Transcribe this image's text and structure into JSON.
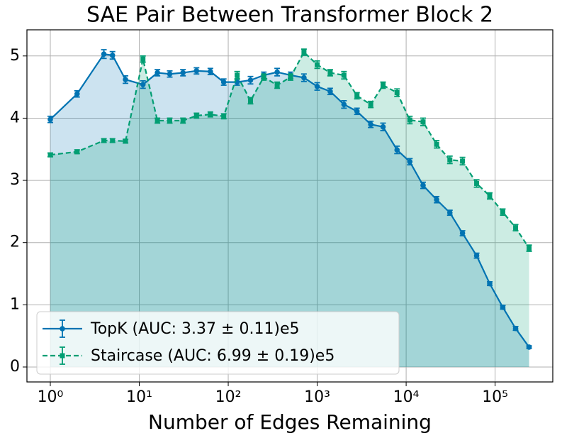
{
  "chart_data": {
    "type": "line",
    "title": "SAE Pair Between Transformer Block 2",
    "x_label": "Number of Edges Remaining",
    "log_x": true,
    "grid": true,
    "legend_loc": "lower left",
    "x": [
      1,
      2,
      4,
      5,
      7,
      11,
      16,
      22,
      31,
      44,
      63,
      89,
      126,
      178,
      251,
      355,
      502,
      710,
      1000,
      1400,
      2000,
      2800,
      4000,
      5500,
      7900,
      11000,
      15500,
      22000,
      31000,
      43000,
      62000,
      87000,
      122000,
      170000,
      241000
    ],
    "xlim": [
      0.546,
      445000
    ],
    "ylim": [
      -0.24,
      5.42
    ],
    "xticks": [
      {
        "value": 1,
        "label": "10⁰"
      },
      {
        "value": 10,
        "label": "10¹"
      },
      {
        "value": 100,
        "label": "10²"
      },
      {
        "value": 1000,
        "label": "10³"
      },
      {
        "value": 10000,
        "label": "10⁴"
      },
      {
        "value": 100000,
        "label": "10⁵"
      }
    ],
    "yticks": [
      0,
      1,
      2,
      3,
      4,
      5
    ],
    "series": [
      {
        "name": "TopK (AUC: 3.37 ± 0.11)e5",
        "color": "#0173b2",
        "marker": "circle",
        "dash": false,
        "values": [
          3.98,
          4.39,
          5.03,
          5.01,
          4.62,
          4.54,
          4.73,
          4.71,
          4.73,
          4.76,
          4.75,
          4.58,
          4.58,
          4.61,
          4.69,
          4.74,
          4.69,
          4.65,
          4.51,
          4.43,
          4.22,
          4.11,
          3.9,
          3.86,
          3.49,
          3.3,
          2.92,
          2.69,
          2.48,
          2.15,
          1.79,
          1.34,
          0.96,
          0.62,
          0.32
        ],
        "errors": [
          0.05,
          0.05,
          0.07,
          0.06,
          0.06,
          0.06,
          0.05,
          0.05,
          0.05,
          0.05,
          0.05,
          0.05,
          0.05,
          0.06,
          0.05,
          0.06,
          0.05,
          0.06,
          0.06,
          0.05,
          0.06,
          0.05,
          0.05,
          0.06,
          0.06,
          0.05,
          0.05,
          0.05,
          0.04,
          0.04,
          0.04,
          0.03,
          0.03,
          0.03,
          0.02
        ]
      },
      {
        "name": "Staircase (AUC: 6.99 ± 0.19)e5",
        "color": "#029e73",
        "marker": "square",
        "dash": true,
        "values": [
          3.41,
          3.46,
          3.64,
          3.64,
          3.63,
          4.95,
          3.96,
          3.96,
          3.96,
          4.04,
          4.06,
          4.03,
          4.69,
          4.28,
          4.66,
          4.53,
          4.66,
          5.06,
          4.86,
          4.73,
          4.69,
          4.36,
          4.22,
          4.53,
          4.41,
          3.97,
          3.94,
          3.58,
          3.33,
          3.31,
          2.95,
          2.75,
          2.49,
          2.24,
          1.91
        ],
        "errors": [
          0.03,
          0.03,
          0.03,
          0.03,
          0.03,
          0.05,
          0.04,
          0.04,
          0.04,
          0.04,
          0.04,
          0.04,
          0.06,
          0.05,
          0.05,
          0.05,
          0.05,
          0.05,
          0.06,
          0.05,
          0.06,
          0.05,
          0.05,
          0.05,
          0.06,
          0.06,
          0.06,
          0.06,
          0.06,
          0.06,
          0.06,
          0.05,
          0.05,
          0.05,
          0.05
        ]
      }
    ]
  }
}
